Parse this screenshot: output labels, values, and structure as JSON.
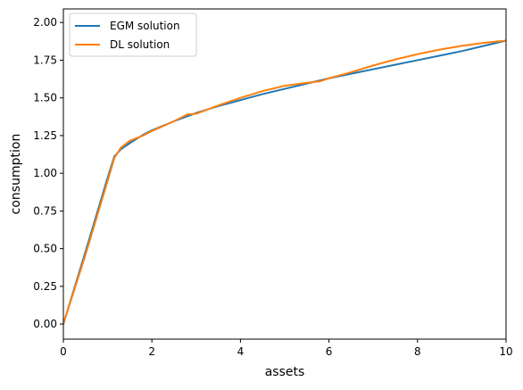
{
  "chart_data": {
    "type": "line",
    "title": "",
    "xlabel": "assets",
    "ylabel": "consumption",
    "xlim": [
      0,
      10
    ],
    "ylim": [
      -0.1,
      2.09
    ],
    "xticks": [
      0,
      2,
      4,
      6,
      8,
      10
    ],
    "xtick_labels": [
      "0",
      "2",
      "4",
      "6",
      "8",
      "10"
    ],
    "yticks": [
      0.0,
      0.25,
      0.5,
      0.75,
      1.0,
      1.25,
      1.5,
      1.75,
      2.0
    ],
    "ytick_labels": [
      "0.00",
      "0.25",
      "0.50",
      "0.75",
      "1.00",
      "1.25",
      "1.50",
      "1.75",
      "2.00"
    ],
    "grid": false,
    "legend": "upper-left",
    "series": [
      {
        "name": "EGM solution",
        "color": "#1f77b4",
        "x": [
          0,
          0.5,
          1.0,
          1.15,
          1.3,
          1.5,
          1.8,
          2.0,
          2.5,
          3.0,
          3.5,
          4.0,
          4.5,
          5.0,
          5.5,
          6.0,
          6.5,
          7.0,
          7.5,
          8.0,
          8.5,
          9.0,
          9.5,
          10.0
        ],
        "y": [
          0.0,
          0.48,
          0.97,
          1.11,
          1.16,
          1.2,
          1.255,
          1.285,
          1.345,
          1.4,
          1.445,
          1.485,
          1.525,
          1.56,
          1.595,
          1.63,
          1.66,
          1.69,
          1.72,
          1.75,
          1.78,
          1.81,
          1.845,
          1.88
        ]
      },
      {
        "name": "DL solution",
        "color": "#ff7f0e",
        "x": [
          0,
          0.5,
          1.0,
          1.15,
          1.3,
          1.5,
          1.8,
          2.0,
          2.5,
          2.8,
          3.0,
          3.5,
          4.0,
          4.5,
          5.0,
          5.5,
          5.8,
          6.0,
          6.5,
          7.0,
          7.5,
          8.0,
          8.5,
          9.0,
          9.5,
          10.0
        ],
        "y": [
          0.0,
          0.46,
          0.95,
          1.1,
          1.17,
          1.215,
          1.25,
          1.28,
          1.345,
          1.39,
          1.395,
          1.45,
          1.5,
          1.545,
          1.58,
          1.6,
          1.61,
          1.63,
          1.67,
          1.715,
          1.755,
          1.79,
          1.82,
          1.845,
          1.865,
          1.88
        ]
      }
    ]
  }
}
